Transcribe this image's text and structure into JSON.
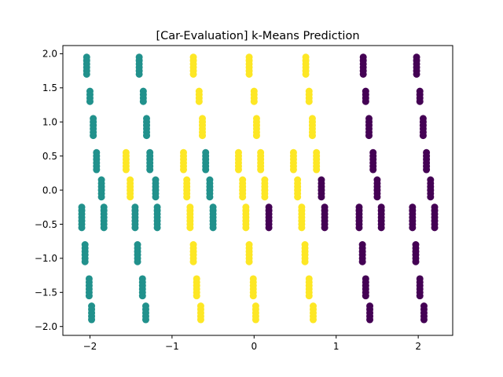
{
  "chart_data": {
    "type": "scatter",
    "title": "[Car-Evaluation] k-Means Prediction",
    "xlabel": "",
    "ylabel": "",
    "xlim": [
      -2.33,
      2.42
    ],
    "ylim": [
      -2.13,
      2.12
    ],
    "xticks": [
      -2,
      -1,
      0,
      1,
      2
    ],
    "xtick_labels": [
      "−2",
      "−1",
      "0",
      "1",
      "2"
    ],
    "yticks": [
      -2.0,
      -1.5,
      -1.0,
      -0.5,
      0.0,
      0.5,
      1.0,
      1.5,
      2.0
    ],
    "ytick_labels": [
      "−2.0",
      "−1.5",
      "−1.0",
      "−0.5",
      "0.0",
      "0.5",
      "1.0",
      "1.5",
      "2.0"
    ],
    "grid": false,
    "legend": "none",
    "cluster_colors": {
      "0": "#440154",
      "1": "#21918c",
      "2": "#fde725"
    },
    "strip_columns": [
      {
        "y": 1.8,
        "x_offset": -0.02
      },
      {
        "y": 1.35,
        "x_offset": 0.0
      },
      {
        "y": 0.93,
        "x_offset": 0.02
      },
      {
        "y": 0.44,
        "x_offset": 0.04
      },
      {
        "y": 0.0,
        "x_offset": 0.06
      },
      {
        "y": -0.42,
        "x_offset": -0.08
      },
      {
        "y": -0.95,
        "x_offset": -0.05
      },
      {
        "y": -1.43,
        "x_offset": -0.03
      },
      {
        "y": -1.83,
        "x_offset": 0.0
      }
    ],
    "series": [
      {
        "cluster": 1,
        "x_centers": [
          -2.0,
          -1.35
        ],
        "y_span": 0.3
      },
      {
        "cluster": 2,
        "x_centers": [
          -0.7,
          0.0
        ],
        "y_span": 0.3
      },
      {
        "cluster": 2,
        "x_centers": [
          0.66
        ],
        "y_span": 0.3
      },
      {
        "cluster": 0,
        "x_centers": [
          1.35,
          2.0
        ],
        "y_span": 0.3
      }
    ],
    "points_by_row": [
      {
        "y_values": [
          1.95,
          1.9,
          1.85,
          1.8,
          1.75,
          1.7
        ],
        "points": [
          [
            -2.04,
            1
          ],
          [
            -1.4,
            1
          ],
          [
            -0.74,
            2
          ],
          [
            -0.06,
            2
          ],
          [
            0.63,
            2
          ],
          [
            1.33,
            0
          ],
          [
            1.98,
            0
          ]
        ]
      },
      {
        "y_values": [
          1.45,
          1.4,
          1.35,
          1.3
        ],
        "points": [
          [
            -2.0,
            1
          ],
          [
            -1.35,
            1
          ],
          [
            -0.67,
            2
          ],
          [
            0.0,
            2
          ],
          [
            0.67,
            2
          ],
          [
            1.36,
            0
          ],
          [
            2.02,
            0
          ]
        ]
      },
      {
        "y_values": [
          1.05,
          1.0,
          0.95,
          0.9,
          0.85,
          0.8
        ],
        "points": [
          [
            -1.96,
            1
          ],
          [
            -1.31,
            1
          ],
          [
            -0.63,
            2
          ],
          [
            0.03,
            2
          ],
          [
            0.71,
            2
          ],
          [
            1.4,
            0
          ],
          [
            2.06,
            0
          ]
        ]
      },
      {
        "y_values": [
          0.55,
          0.5,
          0.45,
          0.4,
          0.35,
          0.3
        ],
        "points": [
          [
            -1.92,
            1
          ],
          [
            -1.56,
            2
          ],
          [
            -1.27,
            1
          ],
          [
            -0.86,
            2
          ],
          [
            -0.59,
            1
          ],
          [
            -0.19,
            2
          ],
          [
            0.08,
            2
          ],
          [
            0.48,
            2
          ],
          [
            0.76,
            2
          ],
          [
            1.45,
            0
          ],
          [
            2.1,
            0
          ]
        ]
      },
      {
        "y_values": [
          0.15,
          0.1,
          0.05,
          0.0,
          -0.05,
          -0.1
        ],
        "points": [
          [
            -1.86,
            1
          ],
          [
            -1.51,
            2
          ],
          [
            -1.2,
            1
          ],
          [
            -0.82,
            2
          ],
          [
            -0.54,
            1
          ],
          [
            -0.14,
            2
          ],
          [
            0.13,
            2
          ],
          [
            0.53,
            2
          ],
          [
            0.82,
            0
          ],
          [
            1.5,
            0
          ],
          [
            2.15,
            0
          ]
        ]
      },
      {
        "y_values": [
          -0.25,
          -0.3,
          -0.35,
          -0.4,
          -0.45,
          -0.5,
          -0.55
        ],
        "points": [
          [
            -2.1,
            1
          ],
          [
            -1.83,
            1
          ],
          [
            -1.45,
            1
          ],
          [
            -1.18,
            1
          ],
          [
            -0.78,
            2
          ],
          [
            -0.5,
            1
          ],
          [
            -0.1,
            2
          ],
          [
            0.18,
            0
          ],
          [
            0.58,
            2
          ],
          [
            0.86,
            0
          ],
          [
            1.28,
            0
          ],
          [
            1.55,
            0
          ],
          [
            1.93,
            0
          ],
          [
            2.2,
            0
          ]
        ]
      },
      {
        "y_values": [
          -0.8,
          -0.85,
          -0.9,
          -0.95,
          -1.0,
          -1.05
        ],
        "points": [
          [
            -2.06,
            1
          ],
          [
            -1.42,
            1
          ],
          [
            -0.74,
            2
          ],
          [
            -0.06,
            2
          ],
          [
            0.62,
            2
          ],
          [
            1.32,
            0
          ],
          [
            1.97,
            0
          ]
        ]
      },
      {
        "y_values": [
          -1.3,
          -1.35,
          -1.4,
          -1.45,
          -1.5,
          -1.55
        ],
        "points": [
          [
            -2.01,
            1
          ],
          [
            -1.36,
            1
          ],
          [
            -0.7,
            2
          ],
          [
            -0.01,
            2
          ],
          [
            0.67,
            2
          ],
          [
            1.36,
            0
          ],
          [
            2.02,
            0
          ]
        ]
      },
      {
        "y_values": [
          -1.7,
          -1.75,
          -1.8,
          -1.85,
          -1.9
        ],
        "points": [
          [
            -1.98,
            1
          ],
          [
            -1.32,
            1
          ],
          [
            -0.65,
            2
          ],
          [
            0.02,
            2
          ],
          [
            0.72,
            2
          ],
          [
            1.41,
            0
          ],
          [
            2.07,
            0
          ]
        ]
      }
    ]
  }
}
